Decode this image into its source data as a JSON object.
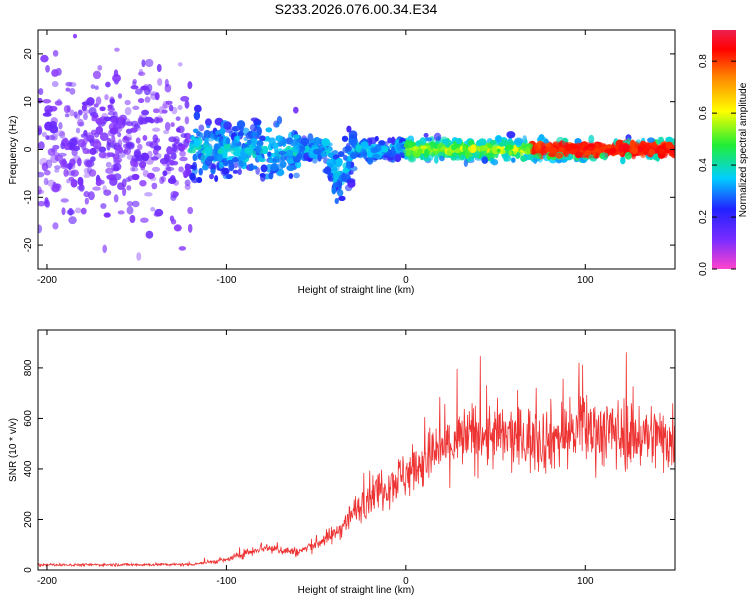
{
  "title": "S233.2026.076.00.34.E34",
  "chart_data": [
    {
      "type": "heatmap",
      "xlabel": "Height of straight line (km)",
      "ylabel": "Frequency (Hz)",
      "xlim": [
        -205,
        150
      ],
      "ylim": [
        -25,
        25
      ],
      "xticks": [
        -200,
        -100,
        0,
        100
      ],
      "yticks": [
        -20,
        -10,
        0,
        10,
        20
      ],
      "colorbar": {
        "label": "Normalized spectral amplitude",
        "range": [
          0,
          0.92
        ],
        "ticks": [
          0.0,
          0.2,
          0.4,
          0.6,
          0.8
        ],
        "colors": [
          "#ff44cc",
          "#7b2cff",
          "#2222ff",
          "#00cfff",
          "#22ee33",
          "#ffff00",
          "#ff8800",
          "#ff0000",
          "#ee2050"
        ]
      },
      "ridge_frequency_hz": 0,
      "dip": {
        "height_km": -37,
        "frequency_hz": -6
      }
    },
    {
      "type": "line",
      "xlabel": "Height of straight line (km)",
      "ylabel": "SNR (10 * v/v)",
      "xlim": [
        -205,
        150
      ],
      "ylim": [
        0,
        950
      ],
      "xticks": [
        -200,
        -100,
        0,
        100
      ],
      "yticks": [
        0,
        200,
        400,
        600,
        800
      ],
      "color": "#ee3333",
      "trend": {
        "x": [
          -205,
          -120,
          -100,
          -80,
          -60,
          -40,
          -20,
          0,
          20,
          40,
          60,
          80,
          100,
          120,
          150
        ],
        "y": [
          20,
          22,
          40,
          90,
          70,
          140,
          300,
          380,
          480,
          540,
          520,
          520,
          560,
          540,
          520
        ]
      }
    }
  ]
}
